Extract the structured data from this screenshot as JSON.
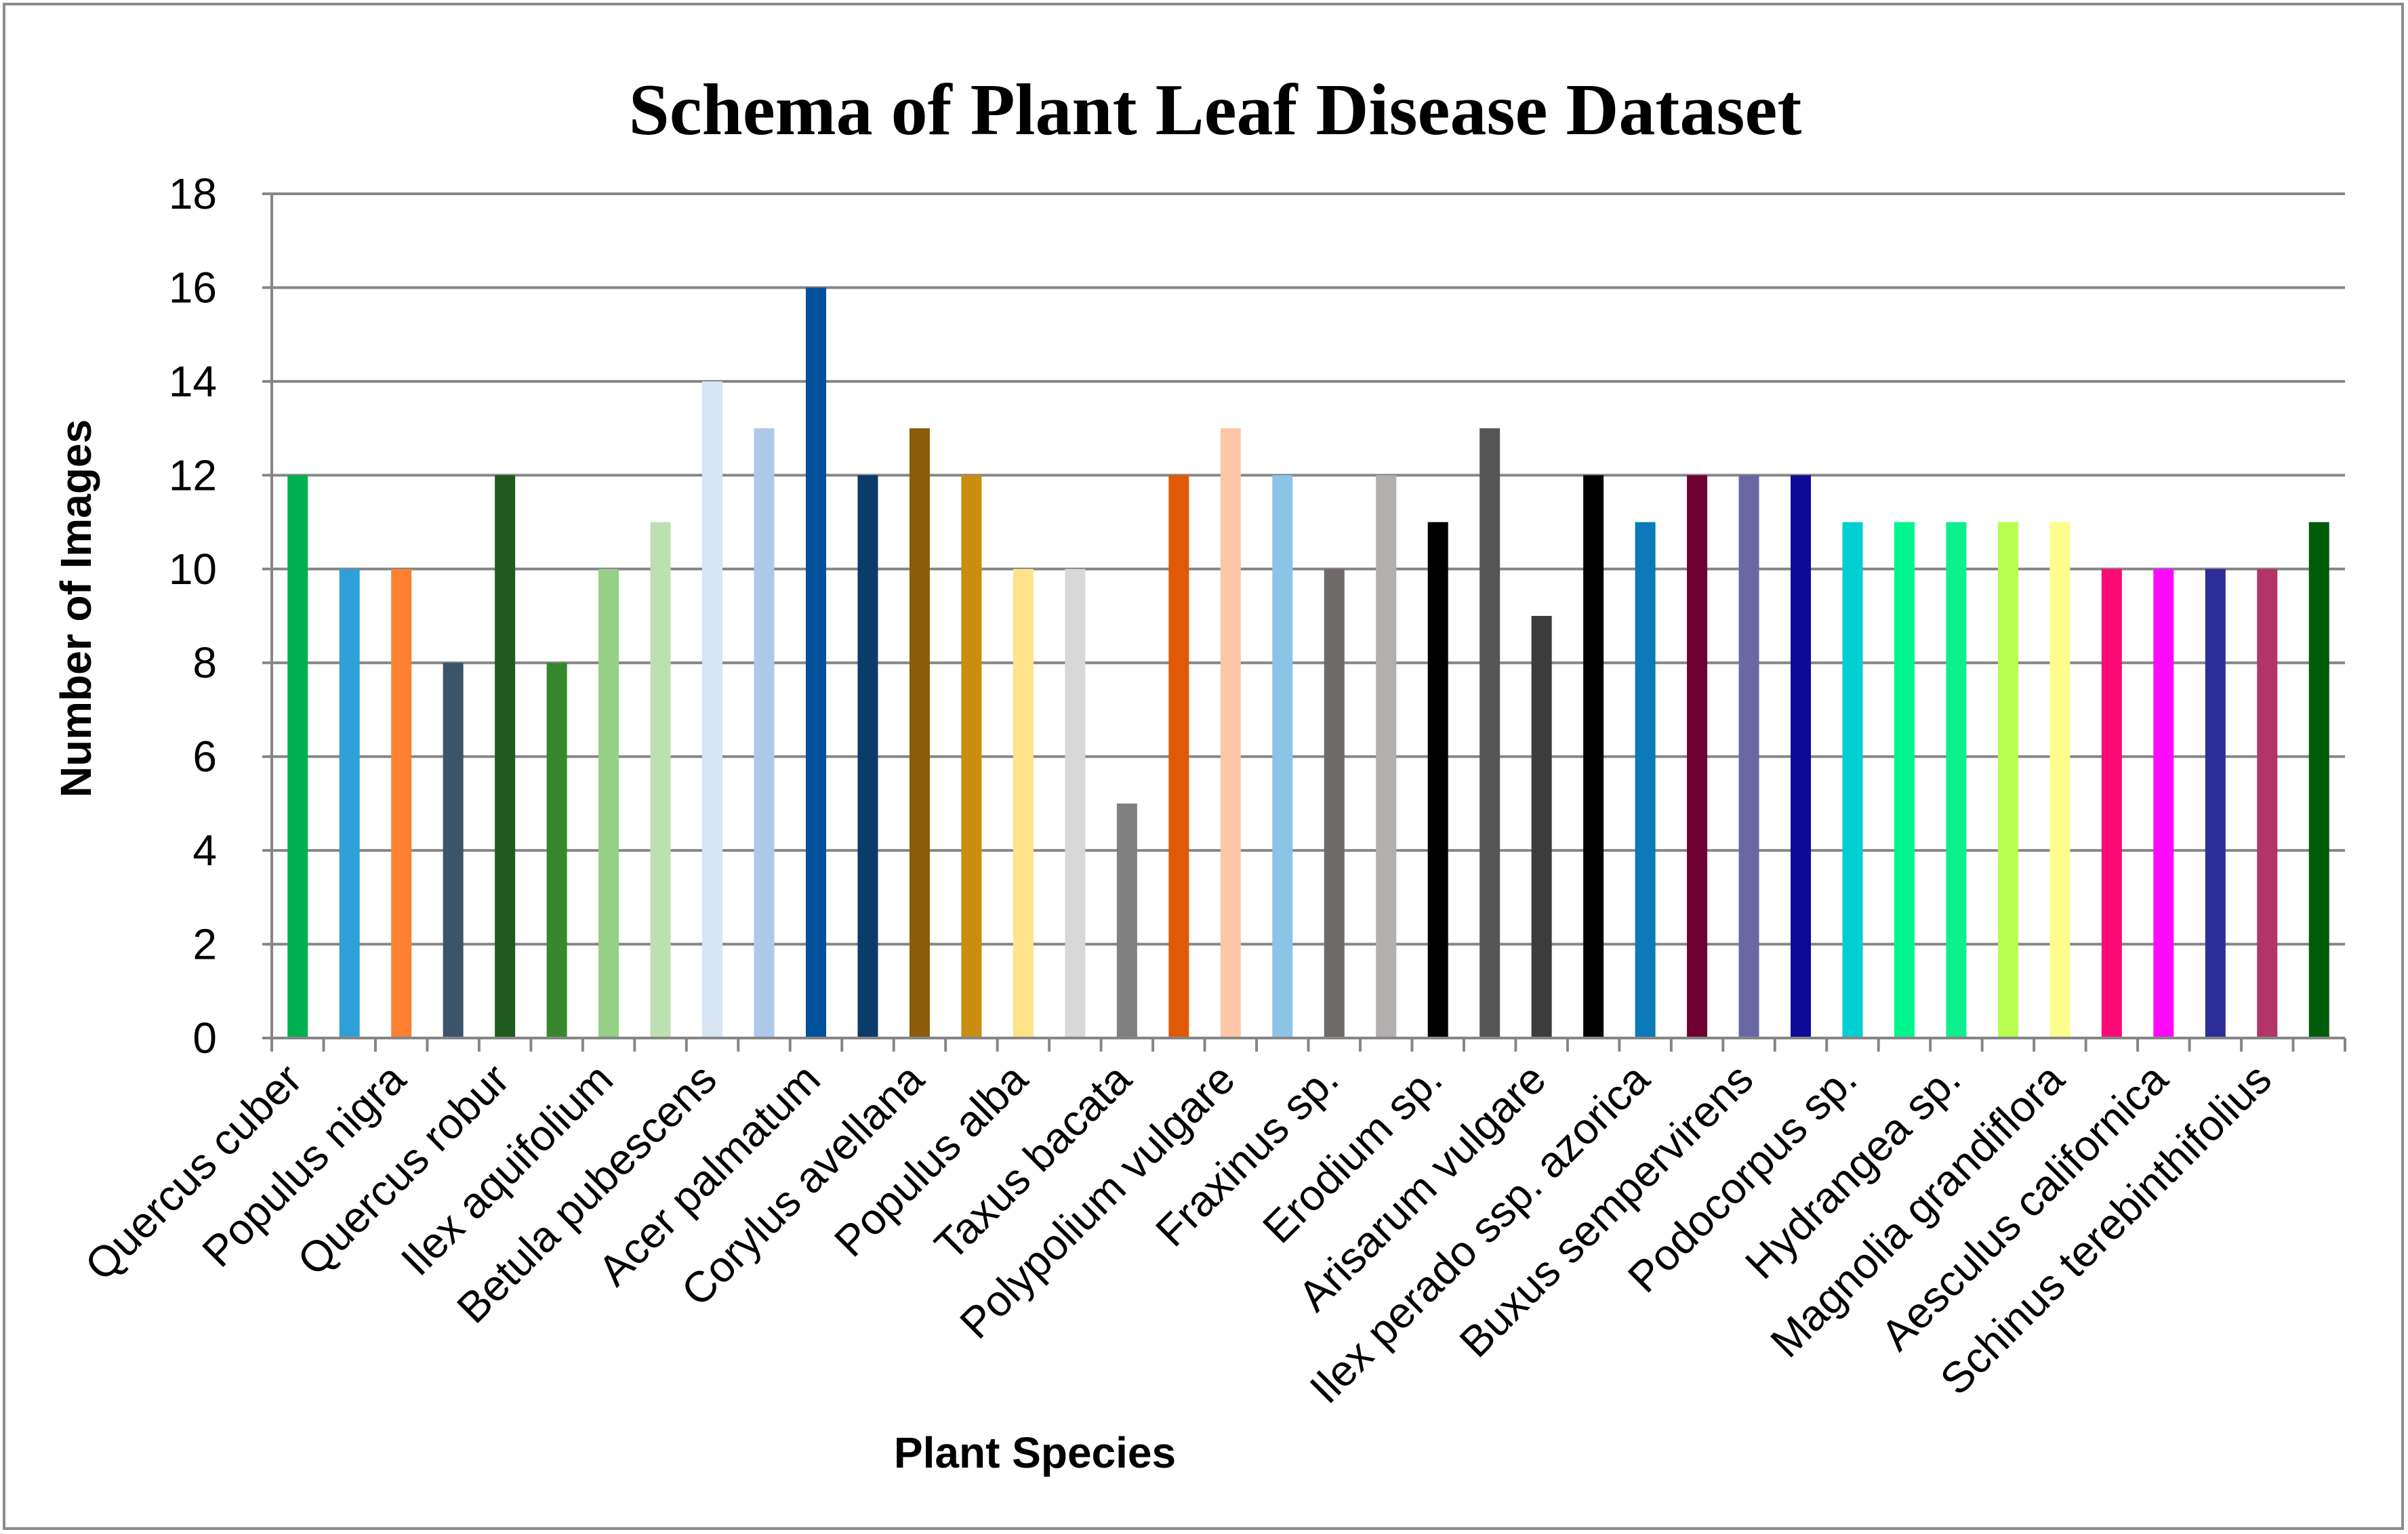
{
  "chart_data": {
    "type": "bar",
    "title": "Schema of Plant Leaf Disease Dataset",
    "xlabel": "Plant Species",
    "ylabel": "Number of Images",
    "ylim": [
      0,
      18
    ],
    "y_ticks": [
      "0",
      "2",
      "4",
      "6",
      "8",
      "10",
      "12",
      "14",
      "16",
      "18"
    ],
    "grid": "horizontal",
    "categories": [
      "Quercus cuber",
      "",
      "Populus nigra",
      "",
      "Quercus robur",
      "",
      "Ilex aquifolium",
      "",
      "Betula pubescens",
      "",
      "Acer palmatum",
      "",
      "Corylus avellana",
      "",
      "Populus alba",
      "",
      "Taxus bacata",
      "",
      "Polypolium vulgare",
      "",
      "Fraxinus sp.",
      "",
      "Erodium sp.",
      "",
      "Arisarum vulgare",
      "",
      "Ilex perado ssp. azorica",
      "",
      "Buxus sempervirens",
      "",
      "Podocorpus sp.",
      "",
      "Hydrangea sp.",
      "",
      "Magnolia grandiflora",
      "",
      "Aesculus californica",
      "",
      "Schinus terebinthifolius",
      ""
    ],
    "values": [
      12,
      10,
      10,
      8,
      12,
      8,
      10,
      11,
      14,
      13,
      16,
      12,
      13,
      12,
      10,
      10,
      5,
      12,
      13,
      12,
      10,
      12,
      11,
      13,
      9,
      12,
      11,
      12,
      12,
      12,
      11,
      11,
      11,
      11,
      11,
      10,
      10,
      10,
      10,
      11
    ],
    "colors": [
      "#00b050",
      "#2e9fd8",
      "#fd8030",
      "#3a546c",
      "#215a1f",
      "#37882d",
      "#96cf88",
      "#bde0b3",
      "#d8e5f2",
      "#aec8ea",
      "#00509b",
      "#0b3b6a",
      "#8b5c09",
      "#c98d11",
      "#ffe389",
      "#d8d8d8",
      "#808080",
      "#e05a06",
      "#fdc6a6",
      "#8cc4e8",
      "#6e6a6a",
      "#b3afaf",
      "#000000",
      "#555555",
      "#3c3c3c",
      "#000000",
      "#0a7ab8",
      "#6e0032",
      "#6a68a4",
      "#0c0a96",
      "#00cfd2",
      "#00f58e",
      "#0fef8f",
      "#b7ff4c",
      "#fdfd8e",
      "#fd0a78",
      "#fd0afd",
      "#2d2d9a",
      "#b33468",
      "#005c0a"
    ]
  }
}
